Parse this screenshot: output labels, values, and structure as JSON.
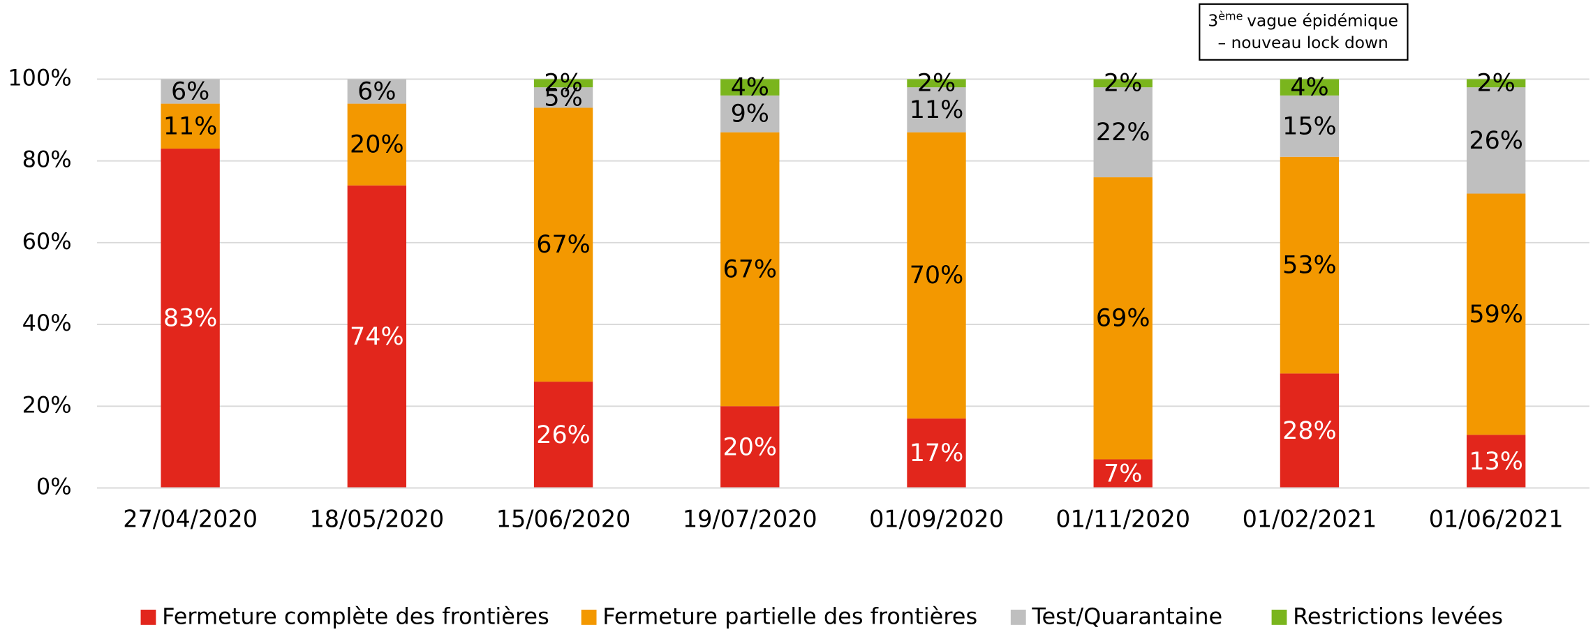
{
  "chart_data": {
    "type": "stacked_bar",
    "categories": [
      "27/04/2020",
      "18/05/2020",
      "15/06/2020",
      "19/07/2020",
      "01/09/2020",
      "01/11/2020",
      "01/02/2021",
      "01/06/2021"
    ],
    "series": [
      {
        "name": "Fermeture complète des frontières",
        "color": "#e2261c",
        "label_color": "#ffffff",
        "values": [
          83,
          74,
          26,
          20,
          17,
          7,
          28,
          13
        ],
        "value_labels": [
          "83%",
          "74%",
          "26%",
          "20%",
          "17%",
          "7%",
          "28%",
          "13%"
        ]
      },
      {
        "name": "Fermeture partielle des frontières",
        "color": "#f39800",
        "label_color": "#000000",
        "values": [
          11,
          20,
          67,
          67,
          70,
          69,
          53,
          59
        ],
        "value_labels": [
          "11%",
          "20%",
          "67%",
          "67%",
          "70%",
          "69%",
          "53%",
          "59%"
        ]
      },
      {
        "name": "Test/Quarantaine",
        "color": "#bfbfbf",
        "label_color": "#000000",
        "values": [
          6,
          6,
          5,
          9,
          11,
          22,
          15,
          26
        ],
        "value_labels": [
          "6%",
          "6%",
          "5%",
          "9%",
          "11%",
          "22%",
          "15%",
          "26%"
        ]
      },
      {
        "name": "Restrictions levées",
        "color": "#7ab51d",
        "label_color": "#000000",
        "values": [
          0,
          0,
          2,
          4,
          2,
          2,
          4,
          2
        ],
        "value_labels": [
          null,
          null,
          "2%",
          "4%",
          "2%",
          "2%",
          "4%",
          "2%"
        ]
      }
    ],
    "ylim": [
      0,
      100
    ],
    "yticks": [
      {
        "value": 0,
        "label": "0%"
      },
      {
        "value": 20,
        "label": "20%"
      },
      {
        "value": 40,
        "label": "40%"
      },
      {
        "value": 60,
        "label": "60%"
      },
      {
        "value": 80,
        "label": "80%"
      },
      {
        "value": 100,
        "label": "100%"
      }
    ],
    "grid": true,
    "legend": "bottom",
    "annotation": {
      "number": "3",
      "superscript": "ème",
      "line1": "vague épidémique",
      "line2": "– nouveau lock down"
    }
  }
}
